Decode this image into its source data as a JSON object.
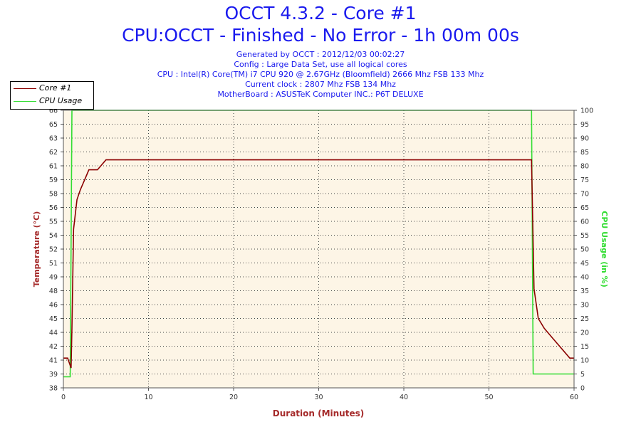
{
  "title_line1": "OCCT 4.3.2 - Core #1",
  "title_line2": "CPU:OCCT - Finished - No Error - 1h 00m 00s",
  "info_lines": [
    "Generated by OCCT : 2012/12/03 00:02:27",
    "Config : Large Data Set, use all logical cores",
    "CPU : Intel(R) Core(TM) i7 CPU 920 @ 2.67GHz (Bloomfield) 2666 Mhz FSB 133 Mhz",
    "Current clock : 2807 Mhz FSB 134 Mhz",
    "MotherBoard : ASUSTeK Computer INC.: P6T DELUXE"
  ],
  "colors": {
    "temperature": "#8b0000",
    "cpu_usage": "#33dd33",
    "plot_bg": "#fdf5e6",
    "axis_title_left": "#a52a2a",
    "axis_title_right": "#33dd33"
  },
  "chart_data": {
    "type": "line",
    "xlabel": "Duration (Minutes)",
    "ylabel_left": "Temperature (°C)",
    "ylabel_right": "CPU Usage (in %)",
    "xlim": [
      0,
      60
    ],
    "x_ticks": [
      0,
      10,
      20,
      30,
      40,
      50,
      60
    ],
    "ylim_left": [
      38,
      66
    ],
    "y_ticks_left": [
      "38",
      "39",
      "41",
      "42",
      "44",
      "45",
      "46",
      "48",
      "49",
      "51",
      "52",
      "54",
      "55",
      "56",
      "58",
      "59",
      "61",
      "62",
      "63",
      "65",
      "66"
    ],
    "ylim_right": [
      0,
      100
    ],
    "y_ticks_right": [
      0,
      5,
      10,
      15,
      20,
      25,
      30,
      35,
      40,
      45,
      50,
      55,
      60,
      65,
      70,
      75,
      80,
      85,
      90,
      95,
      100
    ],
    "grid": true,
    "legend_position": "top-left",
    "series": [
      {
        "name": "Core #1",
        "axis": "left",
        "x": [
          0,
          0.5,
          0.9,
          1.0,
          1.2,
          1.6,
          2.0,
          2.5,
          3.0,
          4.0,
          5.0,
          8.0,
          12.0,
          16.0,
          20.0,
          25.0,
          30.0,
          35.0,
          40.0,
          45.0,
          50.0,
          54.0,
          54.8,
          55.0,
          55.3,
          55.8,
          56.5,
          57.5,
          58.5,
          59.5,
          60.0
        ],
        "values": [
          41,
          41,
          40,
          44,
          54,
          57,
          58,
          59,
          60,
          60,
          61,
          61,
          61,
          61,
          61,
          61,
          61,
          61,
          61,
          61,
          61,
          61,
          61,
          61,
          48,
          45,
          44,
          43,
          42,
          41,
          41
        ]
      },
      {
        "name": "CPU Usage",
        "axis": "right",
        "x": [
          0,
          0.8,
          1.0,
          1.2,
          54.9,
          55.0,
          55.2,
          60.0
        ],
        "values": [
          4,
          4,
          100,
          100,
          100,
          100,
          5,
          5
        ]
      }
    ]
  }
}
